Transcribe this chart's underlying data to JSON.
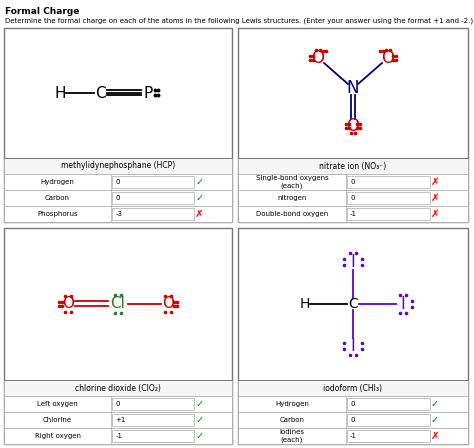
{
  "title": "Formal Charge",
  "subtitle": "Determine the formal charge on each of the atoms in the following Lewis structures. (Enter your answer using the format +1 and -2.)",
  "bg_color": "#ffffff",
  "panels": [
    {
      "id": "HCP",
      "label": "methylidynephosphane (HCP)",
      "rows": [
        {
          "atom": "Hydrogen",
          "value": "0",
          "correct": true
        },
        {
          "atom": "Carbon",
          "value": "0",
          "correct": true
        },
        {
          "atom": "Phosphorus",
          "value": "-3",
          "correct": false
        }
      ]
    },
    {
      "id": "NO3",
      "label": "nitrate ion (NO₃⁻)",
      "rows": [
        {
          "atom": "Single-bond oxygens\n(each)",
          "value": "0",
          "correct": false
        },
        {
          "atom": "nitrogen",
          "value": "0",
          "correct": false
        },
        {
          "atom": "Double-bond oxygen",
          "value": "-1",
          "correct": false
        }
      ]
    },
    {
      "id": "ClO2",
      "label": "chlorine dioxide (ClO₂)",
      "rows": [
        {
          "atom": "Left oxygen",
          "value": "0",
          "correct": true
        },
        {
          "atom": "Chlorine",
          "value": "+1",
          "correct": true
        },
        {
          "atom": "Right oxygen",
          "value": "-1",
          "correct": true
        }
      ]
    },
    {
      "id": "CHI3",
      "label": "iodoform (CHI₃)",
      "rows": [
        {
          "atom": "Hydrogen",
          "value": "0",
          "correct": true
        },
        {
          "atom": "Carbon",
          "value": "0",
          "correct": true
        },
        {
          "atom": "Iodines\n(each)",
          "value": "-1",
          "correct": false
        }
      ]
    }
  ],
  "colors": {
    "red": "#cc0000",
    "blue": "#000080",
    "green": "#2d7a2d",
    "purple": "#6600cc",
    "black": "#000000",
    "gray_ec": "#aaaaaa",
    "gray_ec2": "#777777",
    "panel_bg": "#ffffff",
    "label_bg": "#f8f8f8"
  }
}
